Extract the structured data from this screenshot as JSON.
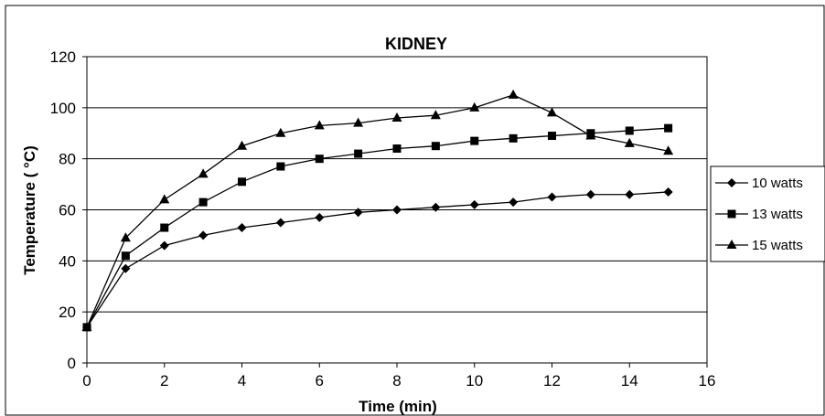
{
  "chart_data": {
    "type": "line",
    "title": "KIDNEY",
    "xlabel": "Time (min)",
    "ylabel": "Temperature ( °C)",
    "xlim": [
      0,
      16
    ],
    "ylim": [
      0,
      120
    ],
    "xticks": [
      0,
      2,
      4,
      6,
      8,
      10,
      12,
      14,
      16
    ],
    "yticks": [
      0,
      20,
      40,
      60,
      80,
      100,
      120
    ],
    "grid": "horizontal",
    "legend": "right",
    "x": [
      0,
      1,
      2,
      3,
      4,
      5,
      6,
      7,
      8,
      9,
      10,
      11,
      12,
      13,
      14,
      15
    ],
    "series": [
      {
        "name": "10 watts",
        "marker": "diamond",
        "values": [
          14,
          37,
          46,
          50,
          53,
          55,
          57,
          59,
          60,
          61,
          62,
          63,
          65,
          66,
          66,
          67
        ]
      },
      {
        "name": "13 watts",
        "marker": "square",
        "values": [
          14,
          42,
          53,
          63,
          71,
          77,
          80,
          82,
          84,
          85,
          87,
          88,
          89,
          90,
          91,
          92
        ]
      },
      {
        "name": "15 watts",
        "marker": "triangle",
        "values": [
          14,
          49,
          64,
          74,
          85,
          90,
          93,
          94,
          96,
          97,
          100,
          105,
          98,
          89,
          86,
          83
        ]
      }
    ]
  }
}
